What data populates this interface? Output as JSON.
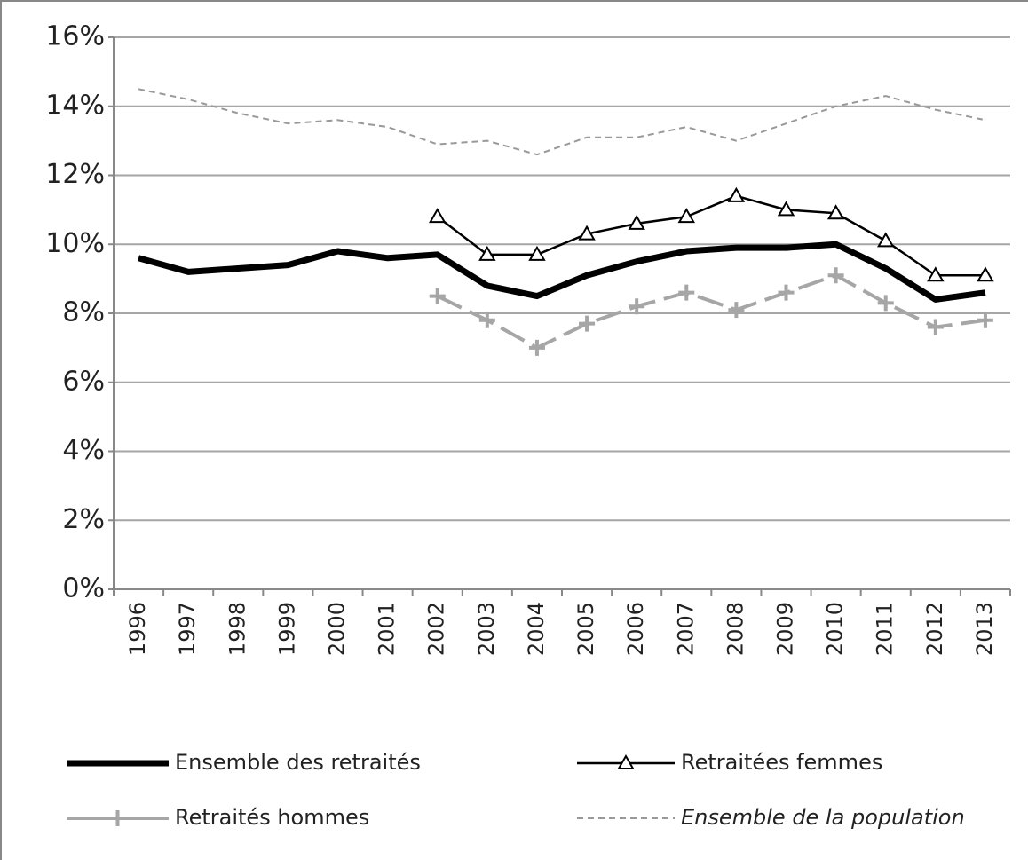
{
  "chart_data": {
    "type": "line",
    "categories": [
      "1996",
      "1997",
      "1998",
      "1999",
      "2000",
      "2001",
      "2002",
      "2003",
      "2004",
      "2005",
      "2006",
      "2007",
      "2008",
      "2009",
      "2010",
      "2011",
      "2012",
      "2013"
    ],
    "series": [
      {
        "name": "Ensemble des retraités",
        "color": "#000000",
        "values": [
          9.6,
          9.2,
          9.3,
          9.4,
          9.8,
          9.6,
          9.7,
          8.8,
          8.5,
          9.1,
          9.5,
          9.8,
          9.9,
          9.9,
          10.0,
          9.3,
          8.4,
          8.6
        ]
      },
      {
        "name": "Retraitées femmes",
        "color": "#000000",
        "marker": "triangle",
        "values": [
          null,
          null,
          null,
          null,
          null,
          null,
          10.8,
          9.7,
          9.7,
          10.3,
          10.6,
          10.8,
          11.4,
          11.0,
          10.9,
          10.1,
          9.1,
          9.1
        ]
      },
      {
        "name": "Retraités hommes",
        "color": "#a6a6a6",
        "marker": "plus",
        "values": [
          null,
          null,
          null,
          null,
          null,
          null,
          8.5,
          7.8,
          7.0,
          7.7,
          8.2,
          8.6,
          8.1,
          8.6,
          9.1,
          8.3,
          7.6,
          7.8
        ]
      },
      {
        "name": "Ensemble de la population",
        "color": "#999999",
        "dashed": true,
        "values": [
          14.5,
          14.2,
          13.8,
          13.5,
          13.6,
          13.4,
          12.9,
          13.0,
          12.6,
          13.1,
          13.1,
          13.4,
          13.0,
          13.5,
          14.0,
          14.3,
          13.9,
          13.6
        ]
      }
    ],
    "ylim": [
      0,
      16
    ],
    "yticks": [
      {
        "value": 0,
        "label": "0%"
      },
      {
        "value": 2,
        "label": "2%"
      },
      {
        "value": 4,
        "label": "4%"
      },
      {
        "value": 6,
        "label": "6%"
      },
      {
        "value": 8,
        "label": "8%"
      },
      {
        "value": 10,
        "label": "10%"
      },
      {
        "value": 12,
        "label": "12%"
      },
      {
        "value": 14,
        "label": "14%"
      },
      {
        "value": 16,
        "label": "16%"
      }
    ],
    "grid": true
  }
}
